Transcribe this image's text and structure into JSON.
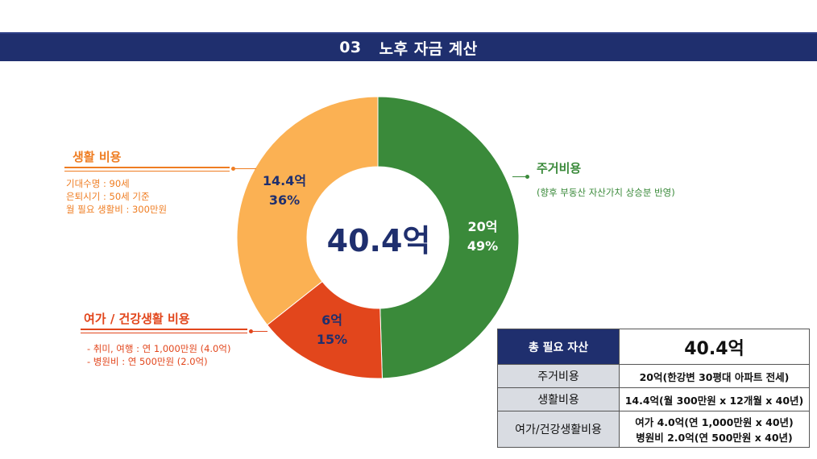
{
  "header": {
    "num": "03",
    "title": "노후 자금 계산"
  },
  "chart_data": {
    "type": "pie",
    "donut": true,
    "center_text": "40.4억",
    "slices": [
      {
        "name": "주거비용",
        "value": 20,
        "amount_label": "20억",
        "pct_label": "49%",
        "color": "#3a8a3a",
        "text_color": "#ffffff"
      },
      {
        "name": "여가 / 건강생활 비용",
        "value": 6,
        "amount_label": "6억",
        "pct_label": "15%",
        "color": "#e2461c",
        "text_color": "#1f2f6e"
      },
      {
        "name": "생활 비용",
        "value": 14.4,
        "amount_label": "14.4억",
        "pct_label": "36%",
        "color": "#fbb153",
        "text_color": "#1f2f6e"
      }
    ]
  },
  "callouts": {
    "living": {
      "title": "생활 비용",
      "color": "#ef7d22",
      "notes": [
        "기대수명 : 90세",
        "은퇴시기 : 50세 기준",
        "월 필요 생활비 : 300만원"
      ]
    },
    "leisure": {
      "title": "여가 / 건강생활 비용",
      "color": "#e2461c",
      "notes": [
        "- 취미, 여행 : 연 1,000만원 (4.0억)",
        "- 병원비 : 연 500만원 (2.0억)"
      ]
    },
    "housing": {
      "title": "주거비용",
      "color": "#3a8a3a",
      "notes": [
        "(향후 부동산 자산가치 상승분 반영)"
      ]
    }
  },
  "table": {
    "total_label": "총 필요 자산",
    "total_value": "40.4억",
    "rows": [
      {
        "label": "주거비용",
        "value": "20억(한강변 30평대 아파트 전세)"
      },
      {
        "label": "생활비용",
        "value": "14.4억(월 300만원 x 12개월 x  40년)"
      },
      {
        "label": "여가/건강생활비용",
        "value_line1": "여가 4.0억(연 1,000만원 x 40년)",
        "value_line2": "병원비 2.0억(연 500만원 x 40년)"
      }
    ]
  }
}
